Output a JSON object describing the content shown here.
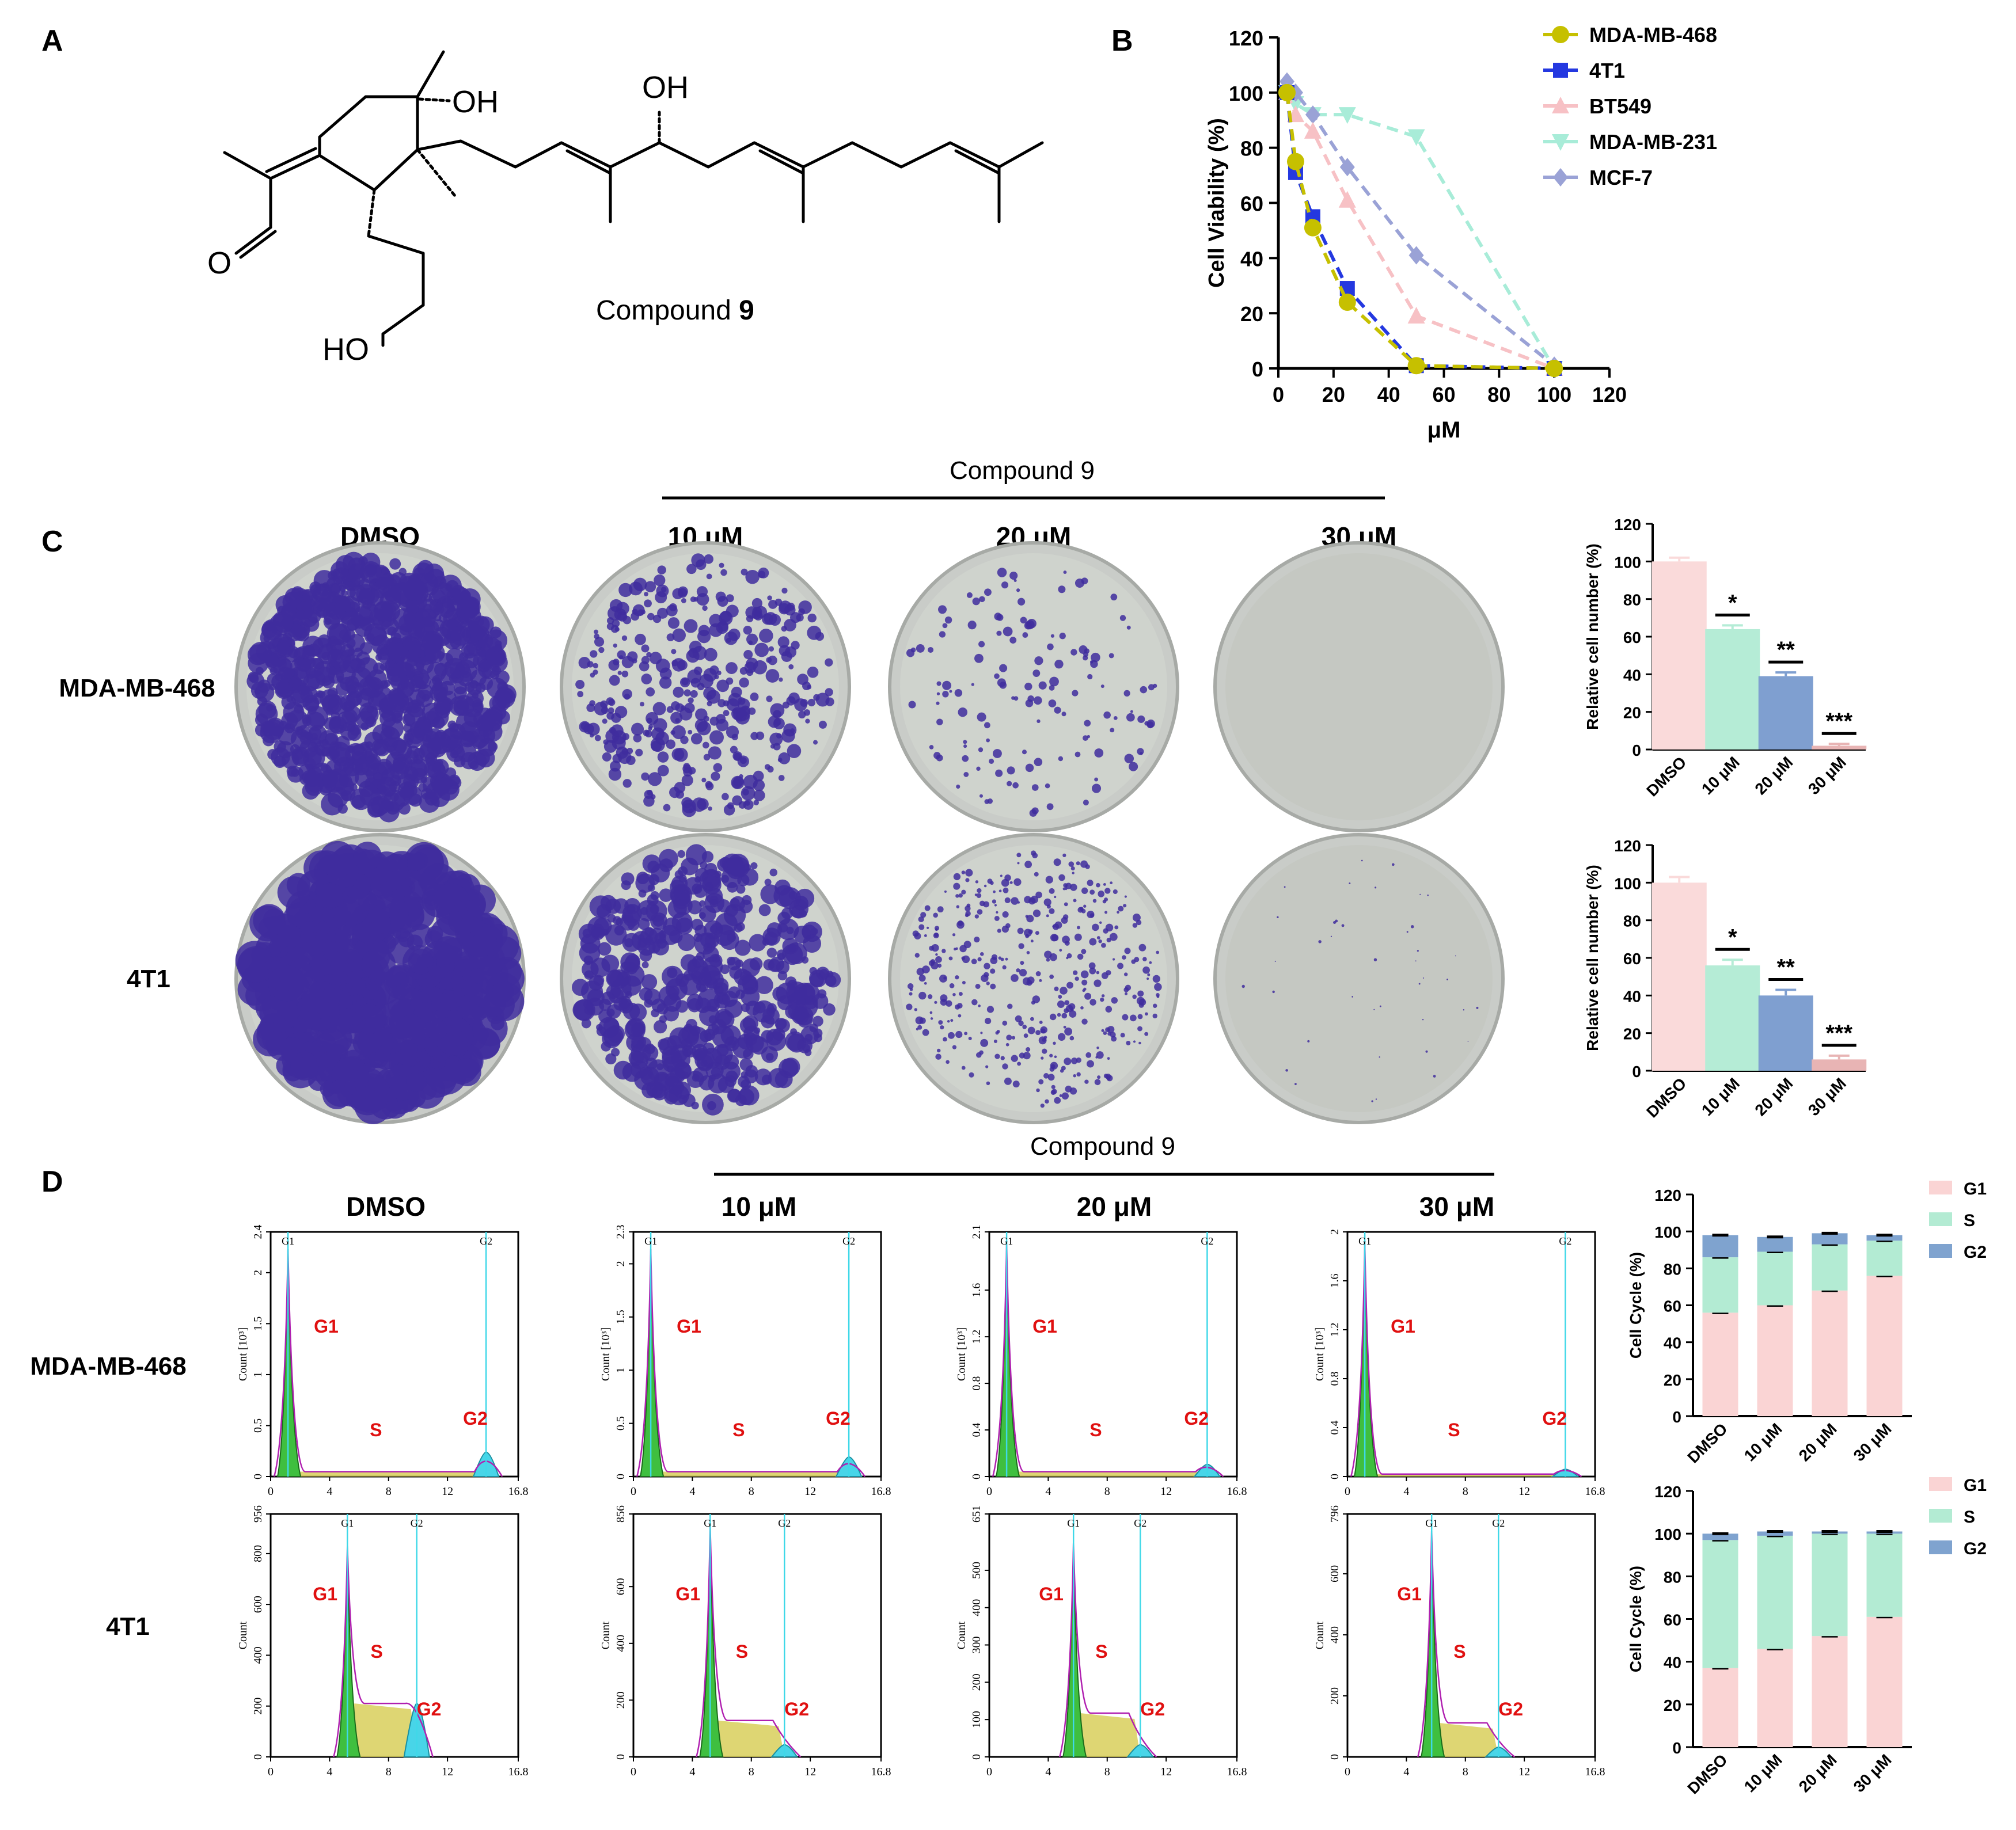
{
  "panels": {
    "a": "A",
    "b": "B",
    "c": "C",
    "d": "D"
  },
  "compound_label": {
    "text": "Compound ",
    "number": "9"
  },
  "structure_labels": {
    "oh1": "OH",
    "oh2": "OH",
    "o": "O",
    "ho": "HO"
  },
  "colors": {
    "mdamb468": "#c6c000",
    "t41": "#2438e0",
    "bt549": "#f7c1c5",
    "mdamb231": "#a8ecd8",
    "mcf7": "#9aa2d6",
    "bar_dmso": "#fadada",
    "bar_10": "#b5ecd6",
    "bar_20": "#7f9fd0",
    "bar_30": "#e8b4b4",
    "cc_g1": "#fad4d4",
    "cc_s": "#b3ebd3",
    "cc_g2": "#7fa3cf",
    "crystal_violet": "#3f2d9e"
  },
  "chart_b": {
    "type": "line",
    "x": [
      3.125,
      6.25,
      12.5,
      25,
      50,
      100
    ],
    "xlabel": "μM",
    "ylabel": "Cell Viability (%)",
    "xlim": [
      0,
      120
    ],
    "ylim": [
      0,
      120
    ],
    "xticks": [
      "0",
      "20",
      "40",
      "60",
      "80",
      "100",
      "120"
    ],
    "yticks": [
      "0",
      "20",
      "40",
      "60",
      "80",
      "100",
      "120"
    ],
    "legend_position": "right",
    "series": [
      {
        "name": "MDA-MB-468",
        "values": [
          100,
          75,
          51,
          24,
          1,
          0
        ],
        "color": "#c6c000",
        "marker": "circle"
      },
      {
        "name": "4T1",
        "values": [
          100,
          71,
          55,
          29,
          1,
          0
        ],
        "color": "#2438e0",
        "marker": "square"
      },
      {
        "name": "BT549",
        "values": [
          100,
          92,
          86,
          61,
          19,
          0
        ],
        "color": "#f7c1c5",
        "marker": "triangle-up"
      },
      {
        "name": "MDA-MB-231",
        "values": [
          100,
          96,
          92,
          92,
          84,
          0
        ],
        "color": "#a8ecd8",
        "marker": "triangle-down"
      },
      {
        "name": "MCF-7",
        "values": [
          104,
          100,
          92,
          73,
          41,
          1
        ],
        "color": "#9aa2d6",
        "marker": "diamond"
      }
    ]
  },
  "panel_c": {
    "compound_header": "Compound 9",
    "column_labels": [
      "DMSO",
      "10 μM",
      "20 μM",
      "30 μM"
    ],
    "row_labels": [
      "MDA-MB-468",
      "4T1"
    ],
    "chart_data": [
      {
        "type": "bar",
        "categories": [
          "DMSO",
          "10 μM",
          "20 μM",
          "30 μM"
        ],
        "values": [
          100,
          64,
          39,
          2
        ],
        "errors": [
          2,
          2,
          2,
          1
        ],
        "significance": [
          "",
          "*",
          "**",
          "***"
        ],
        "ylabel": "Relative cell number (%)",
        "ylim": [
          0,
          120
        ],
        "yticks": [
          "0",
          "20",
          "40",
          "60",
          "80",
          "100",
          "120"
        ]
      },
      {
        "type": "bar",
        "categories": [
          "DMSO",
          "10 μM",
          "20 μM",
          "30 μM"
        ],
        "values": [
          100,
          56,
          40,
          6
        ],
        "errors": [
          3,
          3,
          3,
          2
        ],
        "significance": [
          "",
          "*",
          "**",
          "***"
        ],
        "ylabel": "Relative cell number (%)",
        "ylim": [
          0,
          120
        ],
        "yticks": [
          "0",
          "20",
          "40",
          "60",
          "80",
          "100",
          "120"
        ]
      }
    ]
  },
  "panel_d": {
    "compound_header": "Compound 9",
    "column_labels": [
      "DMSO",
      "10 μM",
      "20 μM",
      "30 μM"
    ],
    "row_labels": [
      "MDA-MB-468",
      "4T1"
    ],
    "histogram_labels": {
      "g1": "G1",
      "s": "S",
      "g2": "G2"
    },
    "row1_ylabel": "Count [10³]",
    "row2_ylabel": "Count",
    "xticks": [
      "0",
      "4",
      "8",
      "12",
      "16.8"
    ],
    "row1_hist": [
      {
        "yticks": [
          "0",
          "0.5",
          "1",
          "1.5",
          "2",
          "2.4"
        ],
        "ymax": 2.4
      },
      {
        "yticks": [
          "0",
          "0.5",
          "1",
          "1.5",
          "2",
          "2.3"
        ],
        "ymax": 2.3
      },
      {
        "yticks": [
          "0",
          "0.4",
          "0.8",
          "1.2",
          "1.6",
          "2.1"
        ],
        "ymax": 2.1
      },
      {
        "yticks": [
          "0",
          "0.4",
          "0.8",
          "1.2",
          "1.6",
          "2"
        ],
        "ymax": 2.0
      }
    ],
    "row2_hist": [
      {
        "yticks": [
          "0",
          "200",
          "400",
          "600",
          "800",
          "956"
        ],
        "ymax": 956
      },
      {
        "yticks": [
          "0",
          "200",
          "400",
          "600",
          "856"
        ],
        "ymax": 856
      },
      {
        "yticks": [
          "0",
          "100",
          "200",
          "300",
          "400",
          "500",
          "651"
        ],
        "ymax": 651
      },
      {
        "yticks": [
          "0",
          "200",
          "400",
          "600",
          "796"
        ],
        "ymax": 796
      }
    ],
    "chart_data": [
      {
        "type": "bar",
        "stacked": true,
        "categories": [
          "DMSO",
          "10 μM",
          "20 μM",
          "30 μM"
        ],
        "series": [
          {
            "name": "G1",
            "values": [
              56,
              60,
              68,
              76
            ]
          },
          {
            "name": "S",
            "values": [
              30,
              29,
              25,
              19
            ]
          },
          {
            "name": "G2",
            "values": [
              12,
              8,
              6,
              3
            ]
          }
        ],
        "ylabel": "Cell Cycle (%)",
        "ylim": [
          0,
          120
        ],
        "yticks": [
          "0",
          "20",
          "40",
          "60",
          "80",
          "100",
          "120"
        ],
        "legend_position": "top-right"
      },
      {
        "type": "bar",
        "stacked": true,
        "categories": [
          "DMSO",
          "10 μM",
          "20 μM",
          "30 μM"
        ],
        "series": [
          {
            "name": "G1",
            "values": [
              37,
              46,
              52,
              61
            ]
          },
          {
            "name": "S",
            "values": [
              60,
              53,
              48,
              39
            ]
          },
          {
            "name": "G2",
            "values": [
              3,
              2,
              1,
              1
            ]
          }
        ],
        "ylabel": "Cell Cycle (%)",
        "ylim": [
          0,
          120
        ],
        "yticks": [
          "0",
          "20",
          "40",
          "60",
          "80",
          "100",
          "120"
        ],
        "legend_position": "top-right"
      }
    ]
  }
}
